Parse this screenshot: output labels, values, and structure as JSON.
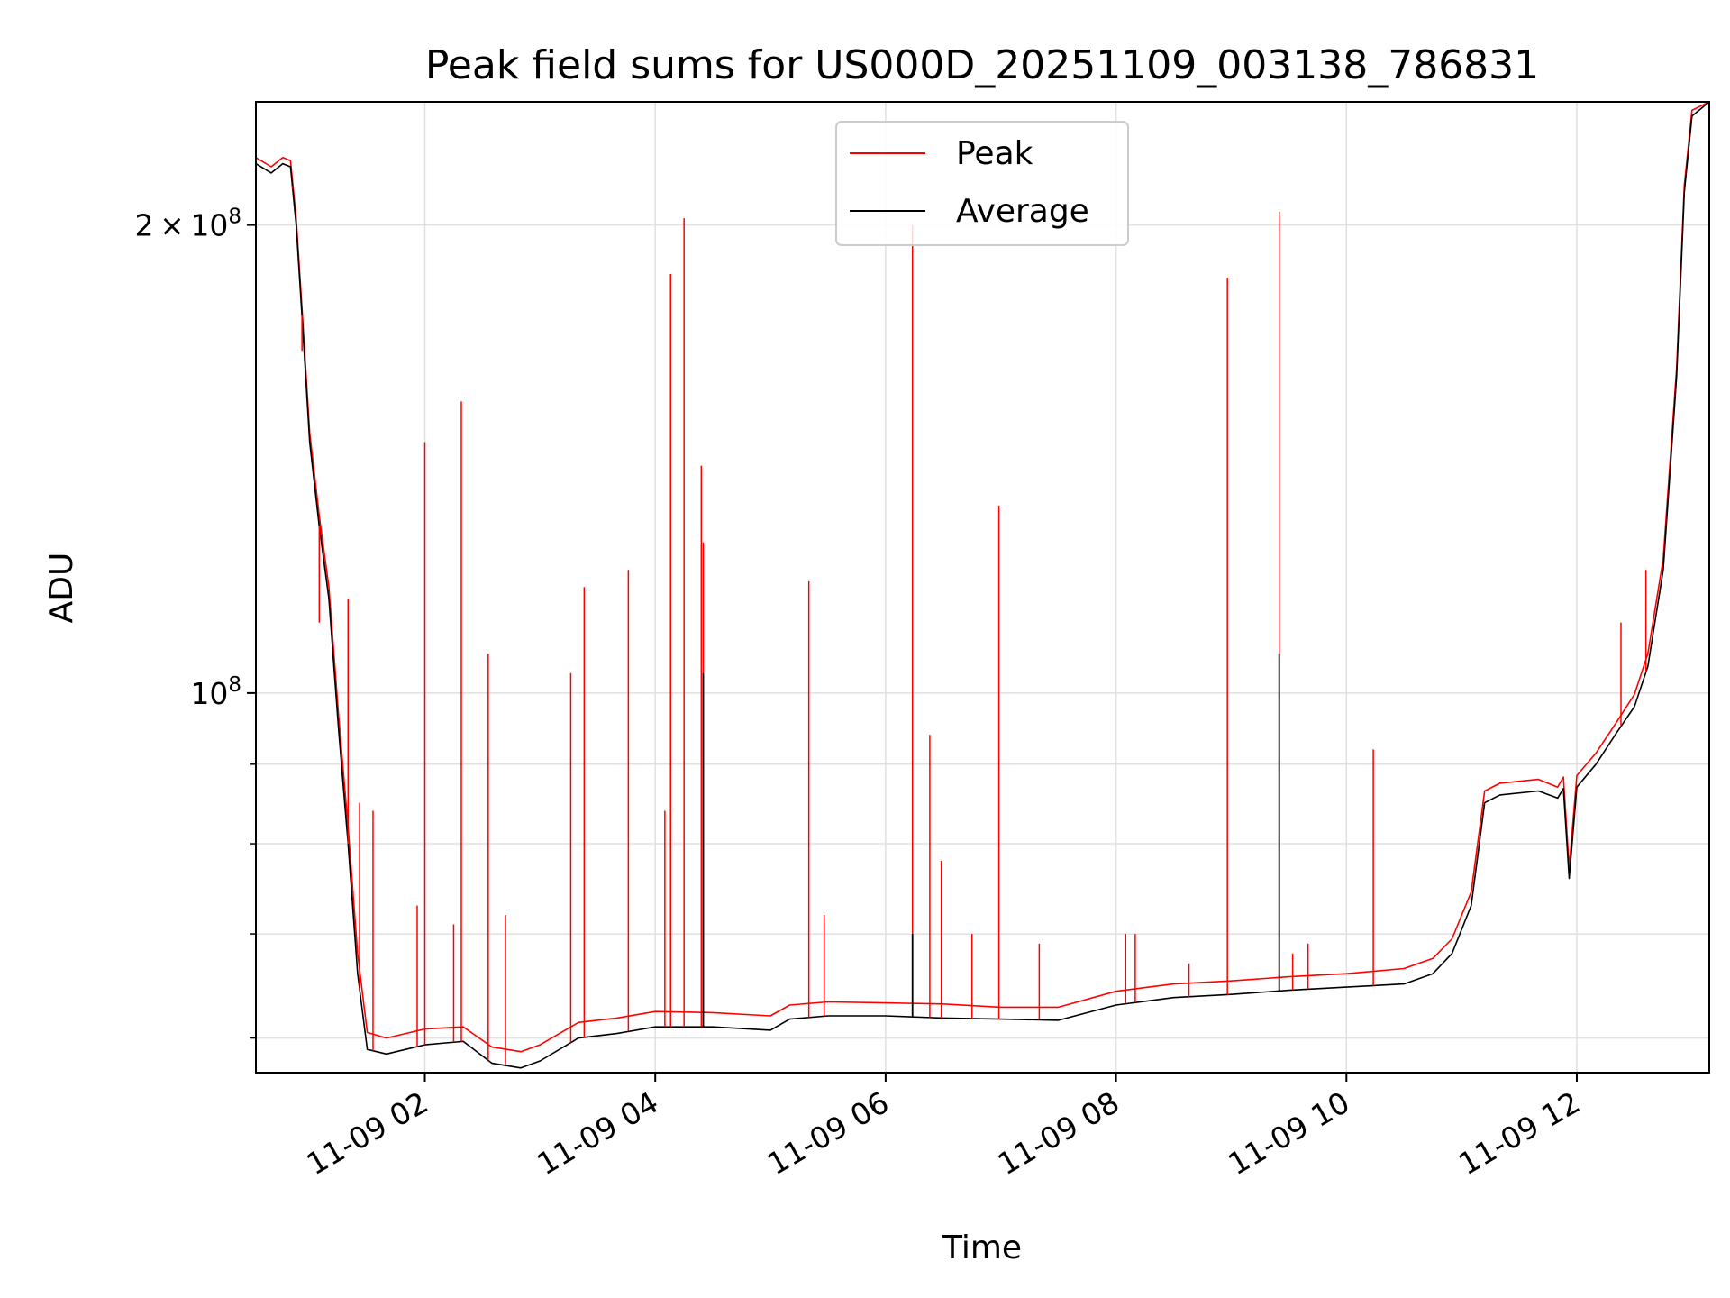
{
  "chart_data": {
    "type": "line",
    "title": "Peak field sums for US000D_20251109_003138_786831",
    "xlabel": "Time",
    "ylabel": "ADU",
    "xlim": [
      "2025-11-09T00:32",
      "2025-11-09T13:09"
    ],
    "ylim": [
      57000000,
      240000000
    ],
    "yscale": "log",
    "grid": true,
    "legend": {
      "placement": "upper center",
      "entries": [
        "Peak",
        "Average"
      ]
    },
    "x_ticks": [
      "11-09 02",
      "11-09 04",
      "11-09 06",
      "11-09 08",
      "11-09 10",
      "11-09 12"
    ],
    "y_major_ticks": [
      {
        "value": 100000000,
        "mantissa": "",
        "exponent": "8"
      },
      {
        "value": 200000000,
        "mantissa": "2",
        "exponent": "8"
      }
    ],
    "y_minor_gridlines": [
      60000000,
      70000000,
      80000000,
      90000000
    ],
    "colors": {
      "Peak": "#ff0000",
      "Average": "#000000",
      "grid": "#e0e0e0",
      "legend_border": "#cccccc"
    },
    "series": [
      {
        "name": "Average",
        "x": [
          "2025-11-09T00:32",
          "2025-11-09T00:40",
          "2025-11-09T00:46",
          "2025-11-09T00:50",
          "2025-11-09T00:53",
          "2025-11-09T00:56",
          "2025-11-09T01:00",
          "2025-11-09T01:05",
          "2025-11-09T01:10",
          "2025-11-09T01:15",
          "2025-11-09T01:20",
          "2025-11-09T01:25",
          "2025-11-09T01:30",
          "2025-11-09T01:40",
          "2025-11-09T01:50",
          "2025-11-09T02:00",
          "2025-11-09T02:20",
          "2025-11-09T02:35",
          "2025-11-09T02:50",
          "2025-11-09T03:00",
          "2025-11-09T03:20",
          "2025-11-09T03:40",
          "2025-11-09T04:00",
          "2025-11-09T04:30",
          "2025-11-09T05:00",
          "2025-11-09T05:10",
          "2025-11-09T05:30",
          "2025-11-09T06:00",
          "2025-11-09T06:30",
          "2025-11-09T07:00",
          "2025-11-09T07:30",
          "2025-11-09T08:00",
          "2025-11-09T08:30",
          "2025-11-09T09:00",
          "2025-11-09T09:30",
          "2025-11-09T10:00",
          "2025-11-09T10:30",
          "2025-11-09T10:45",
          "2025-11-09T10:55",
          "2025-11-09T11:05",
          "2025-11-09T11:12",
          "2025-11-09T11:20",
          "2025-11-09T11:40",
          "2025-11-09T11:50",
          "2025-11-09T11:53",
          "2025-11-09T11:56",
          "2025-11-09T12:00",
          "2025-11-09T12:10",
          "2025-11-09T12:20",
          "2025-11-09T12:30",
          "2025-11-09T12:37",
          "2025-11-09T12:45",
          "2025-11-09T12:52",
          "2025-11-09T12:56",
          "2025-11-09T13:00",
          "2025-11-09T13:09"
        ],
        "values": [
          219000000,
          216000000,
          219000000,
          218000000,
          200000000,
          175000000,
          145000000,
          128000000,
          115000000,
          95000000,
          80000000,
          66000000,
          59000000,
          58600000,
          59000000,
          59400000,
          59700000,
          57800000,
          57400000,
          58000000,
          60000000,
          60400000,
          61000000,
          61000000,
          60700000,
          61700000,
          62000000,
          62000000,
          61800000,
          61700000,
          61600000,
          63000000,
          63700000,
          64000000,
          64400000,
          64700000,
          65000000,
          66000000,
          68000000,
          73000000,
          85000000,
          86000000,
          86500000,
          85600000,
          86800000,
          76000000,
          87000000,
          90000000,
          94000000,
          98000000,
          104000000,
          120000000,
          160000000,
          210000000,
          235000000,
          240000000
        ]
      },
      {
        "name": "Peak",
        "x": [
          "2025-11-09T00:32",
          "2025-11-09T00:40",
          "2025-11-09T00:46",
          "2025-11-09T00:50",
          "2025-11-09T00:53",
          "2025-11-09T00:56",
          "2025-11-09T01:00",
          "2025-11-09T01:05",
          "2025-11-09T01:10",
          "2025-11-09T01:15",
          "2025-11-09T01:20",
          "2025-11-09T01:25",
          "2025-11-09T01:30",
          "2025-11-09T01:40",
          "2025-11-09T01:50",
          "2025-11-09T02:00",
          "2025-11-09T02:20",
          "2025-11-09T02:35",
          "2025-11-09T02:50",
          "2025-11-09T03:00",
          "2025-11-09T03:20",
          "2025-11-09T03:40",
          "2025-11-09T04:00",
          "2025-11-09T04:30",
          "2025-11-09T05:00",
          "2025-11-09T05:10",
          "2025-11-09T05:30",
          "2025-11-09T06:00",
          "2025-11-09T06:30",
          "2025-11-09T07:00",
          "2025-11-09T07:30",
          "2025-11-09T08:00",
          "2025-11-09T08:30",
          "2025-11-09T09:00",
          "2025-11-09T09:30",
          "2025-11-09T10:00",
          "2025-11-09T10:30",
          "2025-11-09T10:45",
          "2025-11-09T10:55",
          "2025-11-09T11:05",
          "2025-11-09T11:12",
          "2025-11-09T11:20",
          "2025-11-09T11:40",
          "2025-11-09T11:50",
          "2025-11-09T11:53",
          "2025-11-09T11:56",
          "2025-11-09T12:00",
          "2025-11-09T12:10",
          "2025-11-09T12:20",
          "2025-11-09T12:30",
          "2025-11-09T12:37",
          "2025-11-09T12:45",
          "2025-11-09T12:52",
          "2025-11-09T12:56",
          "2025-11-09T13:00",
          "2025-11-09T13:09"
        ],
        "values": [
          221000000,
          218000000,
          221000000,
          220000000,
          202000000,
          177000000,
          147000000,
          130000000,
          117000000,
          97000000,
          82000000,
          68000000,
          60500000,
          60000000,
          60400000,
          60800000,
          61000000,
          59200000,
          58800000,
          59400000,
          61400000,
          61800000,
          62400000,
          62300000,
          62000000,
          63000000,
          63300000,
          63200000,
          63100000,
          62800000,
          62800000,
          64300000,
          65000000,
          65300000,
          65700000,
          66000000,
          66500000,
          67500000,
          69500000,
          74500000,
          86500000,
          87500000,
          88000000,
          87000000,
          88300000,
          77200000,
          88500000,
          91500000,
          95500000,
          99800000,
          106000000,
          122000000,
          162000000,
          212000000,
          237000000,
          240000000
        ]
      }
    ],
    "spikes": {
      "x": [
        "2025-11-09T00:51",
        "2025-11-09T00:56",
        "2025-11-09T01:05",
        "2025-11-09T01:20",
        "2025-11-09T01:26",
        "2025-11-09T01:33",
        "2025-11-09T01:56",
        "2025-11-09T02:00",
        "2025-11-09T02:15",
        "2025-11-09T02:19",
        "2025-11-09T02:33",
        "2025-11-09T02:42",
        "2025-11-09T03:16",
        "2025-11-09T03:23",
        "2025-11-09T03:46",
        "2025-11-09T04:05",
        "2025-11-09T04:08",
        "2025-11-09T04:15",
        "2025-11-09T04:24",
        "2025-11-09T04:25",
        "2025-11-09T05:20",
        "2025-11-09T05:28",
        "2025-11-09T06:14",
        "2025-11-09T06:23",
        "2025-11-09T06:29",
        "2025-11-09T06:45",
        "2025-11-09T06:59",
        "2025-11-09T07:20",
        "2025-11-09T08:05",
        "2025-11-09T08:10",
        "2025-11-09T08:38",
        "2025-11-09T08:58",
        "2025-11-09T09:25",
        "2025-11-09T09:32",
        "2025-11-09T09:40",
        "2025-11-09T10:14",
        "2025-11-09T12:23",
        "2025-11-09T12:36"
      ],
      "peak": [
        211000000,
        166000000,
        111000000,
        115000000,
        85000000,
        84000000,
        73000000,
        145000000,
        71000000,
        154000000,
        106000000,
        72000000,
        103000000,
        117000000,
        120000000,
        84000000,
        186000000,
        202000000,
        140000000,
        125000000,
        118000000,
        72000000,
        200000000,
        94000000,
        78000000,
        70000000,
        132000000,
        69000000,
        70000000,
        70000000,
        67000000,
        185000000,
        204000000,
        68000000,
        69000000,
        92000000,
        111000000,
        120000000
      ],
      "average": [
        null,
        null,
        null,
        null,
        null,
        null,
        null,
        null,
        null,
        null,
        null,
        null,
        null,
        null,
        null,
        null,
        null,
        null,
        null,
        103000000,
        null,
        null,
        70000000,
        null,
        null,
        null,
        null,
        null,
        null,
        null,
        null,
        null,
        106000000,
        null,
        null,
        null,
        null,
        null
      ]
    }
  }
}
